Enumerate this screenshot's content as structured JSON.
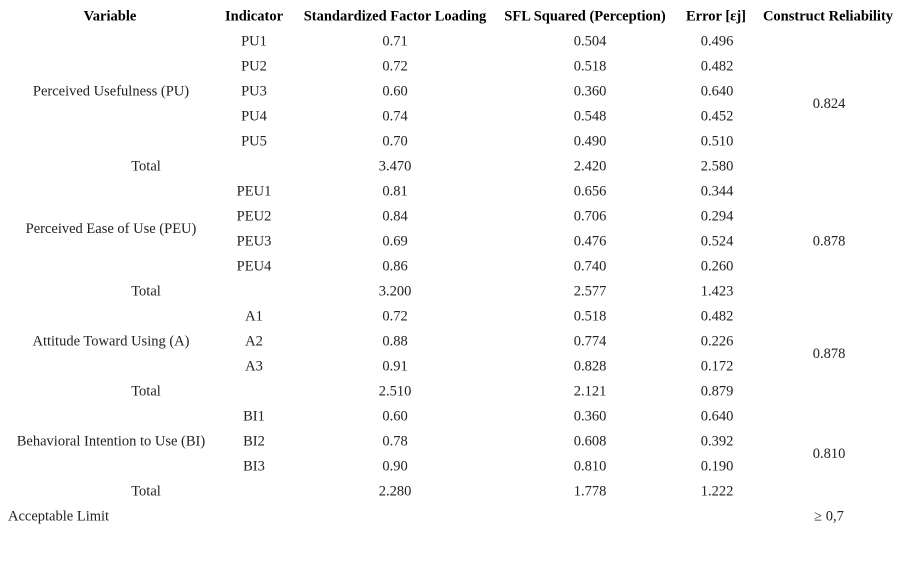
{
  "header": [
    "Variable",
    "Indicator",
    "Standardized Factor Loading",
    "SFL Squared (Perception)",
    "Error [εj]",
    "Construct Reliability"
  ],
  "groups": [
    {
      "variable": "Perceived Usefulness (PU)",
      "rows": [
        [
          "PU1",
          "0.71",
          "0.504",
          "0.496"
        ],
        [
          "PU2",
          "0.72",
          "0.518",
          "0.482"
        ],
        [
          "PU3",
          "0.60",
          "0.360",
          "0.640"
        ],
        [
          "PU4",
          "0.74",
          "0.548",
          "0.452"
        ],
        [
          "PU5",
          "0.70",
          "0.490",
          "0.510"
        ]
      ],
      "total": [
        "Total",
        "3.470",
        "2.420",
        "2.580"
      ],
      "construct_reliability": "0.824"
    },
    {
      "variable": "Perceived Ease of Use (PEU)",
      "rows": [
        [
          "PEU1",
          "0.81",
          "0.656",
          "0.344"
        ],
        [
          "PEU2",
          "0.84",
          "0.706",
          "0.294"
        ],
        [
          "PEU3",
          "0.69",
          "0.476",
          "0.524"
        ],
        [
          "PEU4",
          "0.86",
          "0.740",
          "0.260"
        ]
      ],
      "total": [
        "Total",
        "3.200",
        "2.577",
        "1.423"
      ],
      "construct_reliability": "0.878"
    },
    {
      "variable": "Attitude Toward Using (A)",
      "rows": [
        [
          "A1",
          "0.72",
          "0.518",
          "0.482"
        ],
        [
          "A2",
          "0.88",
          "0.774",
          "0.226"
        ],
        [
          "A3",
          "0.91",
          "0.828",
          "0.172"
        ]
      ],
      "total": [
        "Total",
        "2.510",
        "2.121",
        "0.879"
      ],
      "construct_reliability": "0.878"
    },
    {
      "variable": "Behavioral Intention to Use (BI)",
      "rows": [
        [
          "BI1",
          "0.60",
          "0.360",
          "0.640"
        ],
        [
          "BI2",
          "0.78",
          "0.608",
          "0.392"
        ],
        [
          "BI3",
          "0.90",
          "0.810",
          "0.190"
        ]
      ],
      "total": [
        "Total",
        "2.280",
        "1.778",
        "1.222"
      ],
      "construct_reliability": "0.810"
    }
  ],
  "footer": {
    "label": "Acceptable Limit",
    "construct_reliability": "≥ 0,7"
  }
}
